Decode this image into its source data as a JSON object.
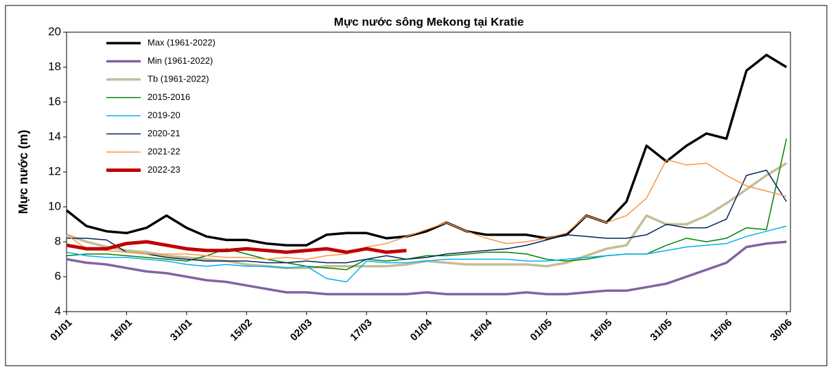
{
  "chart_data": {
    "type": "line",
    "title": "Mực nước sông Mekong tại Kratie",
    "y_label": "Mực nước (m)",
    "x": [
      0,
      5,
      10,
      15,
      20,
      25,
      30,
      35,
      40,
      45,
      50,
      55,
      60,
      65,
      70,
      75,
      80,
      85,
      90,
      95,
      100,
      105,
      110,
      115,
      120,
      125,
      130,
      135,
      140,
      145,
      150,
      155,
      160,
      165,
      170,
      175,
      180
    ],
    "xlim": [
      0,
      181
    ],
    "ylim": [
      4,
      20
    ],
    "yticks": [
      4,
      6,
      8,
      10,
      12,
      14,
      16,
      18,
      20
    ],
    "xticks": [
      {
        "value": 0,
        "label": "01/01"
      },
      {
        "value": 15,
        "label": "16/01"
      },
      {
        "value": 30,
        "label": "31/01"
      },
      {
        "value": 45,
        "label": "15/02"
      },
      {
        "value": 60,
        "label": "02/03"
      },
      {
        "value": 75,
        "label": "17/03"
      },
      {
        "value": 90,
        "label": "01/04"
      },
      {
        "value": 105,
        "label": "16/04"
      },
      {
        "value": 120,
        "label": "01/05"
      },
      {
        "value": 135,
        "label": "16/05"
      },
      {
        "value": 150,
        "label": "31/05"
      },
      {
        "value": 165,
        "label": "15/06"
      },
      {
        "value": 180,
        "label": "30/06"
      }
    ],
    "legend": "upper left",
    "series": [
      {
        "name": "Max (1961-2022)",
        "color": "#000000",
        "width": 3.5,
        "values": [
          9.8,
          8.9,
          8.6,
          8.5,
          8.8,
          9.5,
          8.8,
          8.3,
          8.1,
          8.1,
          7.9,
          7.8,
          7.8,
          8.4,
          8.5,
          8.5,
          8.2,
          8.3,
          8.6,
          9.1,
          8.6,
          8.4,
          8.4,
          8.4,
          8.2,
          8.4,
          9.5,
          9.1,
          10.3,
          13.5,
          12.6,
          13.5,
          14.2,
          13.9,
          17.8,
          18.7,
          18.0
        ]
      },
      {
        "name": "Min (1961-2022)",
        "color": "#8064a2",
        "width": 3.5,
        "values": [
          7.0,
          6.8,
          6.7,
          6.5,
          6.3,
          6.2,
          6.0,
          5.8,
          5.7,
          5.5,
          5.3,
          5.1,
          5.1,
          5.0,
          5.0,
          5.0,
          5.0,
          5.0,
          5.1,
          5.0,
          5.0,
          5.0,
          5.0,
          5.1,
          5.0,
          5.0,
          5.1,
          5.2,
          5.2,
          5.4,
          5.6,
          6.0,
          6.4,
          6.8,
          7.7,
          7.9,
          8.0
        ]
      },
      {
        "name": "Tb (1961-2022)",
        "color": "#c4bd97",
        "width": 3.5,
        "values": [
          8.4,
          8.0,
          7.7,
          7.5,
          7.4,
          7.2,
          7.1,
          7.0,
          6.9,
          6.7,
          6.6,
          6.5,
          6.5,
          6.6,
          6.6,
          6.6,
          6.6,
          6.7,
          6.9,
          6.8,
          6.7,
          6.7,
          6.7,
          6.7,
          6.6,
          6.8,
          7.2,
          7.6,
          7.8,
          9.5,
          9.0,
          9.0,
          9.5,
          10.2,
          11.0,
          11.8,
          12.5
        ]
      },
      {
        "name": "2015-2016",
        "color": "#008000",
        "width": 1.5,
        "values": [
          7.2,
          7.3,
          7.3,
          7.2,
          7.1,
          7.0,
          6.9,
          7.2,
          7.6,
          7.3,
          7.0,
          6.8,
          6.6,
          6.5,
          6.4,
          7.0,
          6.9,
          7.0,
          7.2,
          7.2,
          7.3,
          7.4,
          7.4,
          7.3,
          7.0,
          6.9,
          7.0,
          7.2,
          7.3,
          7.3,
          7.8,
          8.2,
          8.0,
          8.2,
          8.8,
          8.7,
          13.9
        ]
      },
      {
        "name": "2019-20",
        "color": "#00b0f0",
        "width": 1.5,
        "values": [
          7.4,
          7.2,
          7.1,
          7.1,
          7.0,
          6.9,
          6.7,
          6.6,
          6.7,
          6.6,
          6.6,
          6.5,
          6.6,
          5.9,
          5.7,
          6.9,
          6.8,
          6.8,
          6.9,
          7.0,
          7.0,
          7.0,
          7.0,
          6.9,
          6.9,
          7.0,
          7.1,
          7.2,
          7.3,
          7.3,
          7.5,
          7.7,
          7.8,
          7.9,
          8.3,
          8.6,
          8.9
        ]
      },
      {
        "name": "2020-21",
        "color": "#002060",
        "width": 1.5,
        "values": [
          8.2,
          8.2,
          8.1,
          7.4,
          7.3,
          7.1,
          7.0,
          6.9,
          6.9,
          6.9,
          6.8,
          6.8,
          6.9,
          6.8,
          6.8,
          7.0,
          7.2,
          7.0,
          7.1,
          7.3,
          7.4,
          7.5,
          7.6,
          7.8,
          8.1,
          8.4,
          8.3,
          8.2,
          8.2,
          8.4,
          9.0,
          8.8,
          8.8,
          9.3,
          11.8,
          12.1,
          10.3
        ]
      },
      {
        "name": "2021-22",
        "color": "#f79646",
        "width": 1.5,
        "values": [
          8.4,
          7.6,
          7.5,
          7.4,
          7.3,
          7.3,
          7.3,
          7.2,
          7.1,
          7.1,
          7.0,
          7.1,
          7.0,
          7.2,
          7.3,
          7.7,
          7.9,
          8.3,
          8.7,
          9.1,
          8.6,
          8.2,
          7.9,
          8.0,
          8.2,
          8.5,
          9.5,
          9.1,
          9.5,
          10.5,
          12.7,
          12.4,
          12.5,
          11.8,
          11.2,
          10.9,
          10.6
        ]
      },
      {
        "name": "2022-23",
        "color": "#c00000",
        "width": 5,
        "values": [
          7.8,
          7.6,
          7.6,
          7.9,
          8.0,
          7.8,
          7.6,
          7.5,
          7.5,
          7.6,
          7.5,
          7.4,
          7.5,
          7.6,
          7.4,
          7.6,
          7.4,
          7.5,
          null,
          null,
          null,
          null,
          null,
          null,
          null,
          null,
          null,
          null,
          null,
          null,
          null,
          null,
          null,
          null,
          null,
          null,
          null
        ]
      }
    ]
  }
}
